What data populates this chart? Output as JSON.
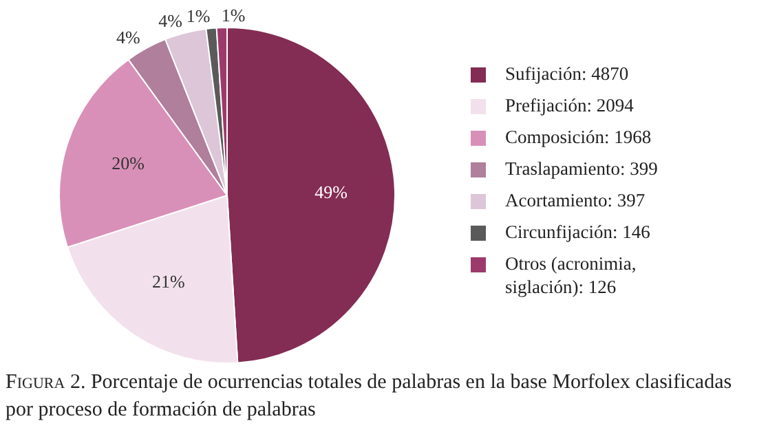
{
  "chart_data": {
    "type": "pie",
    "title": "Figura 2. Porcentaje de ocurrencias totales de palabras en la base Morfolex clasificadas por proceso de formación de palabras",
    "categories": [
      "Sufijación: 4870",
      "Prefijación: 2094",
      "Composición: 1968",
      "Traslapamiento: 399",
      "Acortamiento: 397",
      "Circunfijación: 146",
      "Otros (acronimia, siglación): 126"
    ],
    "values": [
      49,
      21,
      20,
      4,
      4,
      1,
      1
    ],
    "value_labels": [
      "49%",
      "21%",
      "20%",
      "4%",
      "4%",
      "1%",
      "1%"
    ],
    "colors": [
      "#832c54",
      "#f2e1ec",
      "#d990b8",
      "#b07f9c",
      "#dcc6d8",
      "#5a5a5a",
      "#9c3a6c"
    ],
    "legend": "right"
  }
}
